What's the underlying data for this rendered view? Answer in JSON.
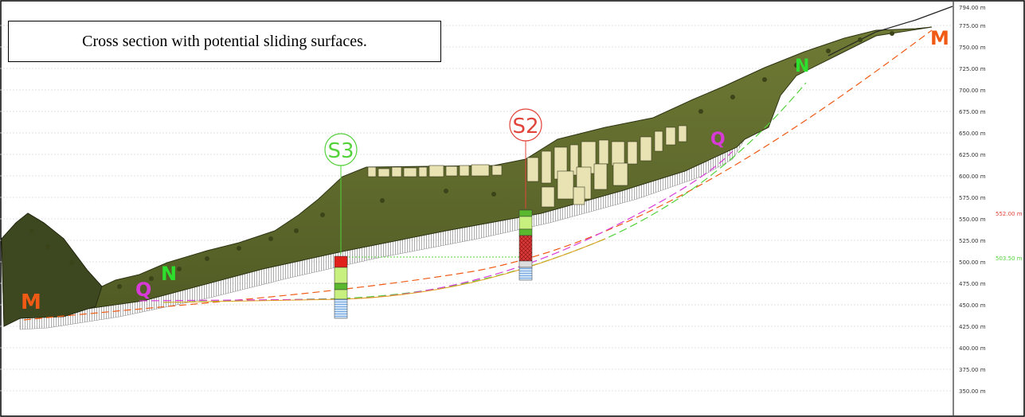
{
  "title": "Cross section with potential sliding surfaces.",
  "elevation_scale": {
    "labels": [
      "794.00 m",
      "775.00 m",
      "750.00 m",
      "725.00 m",
      "700.00 m",
      "675.00 m",
      "650.00 m",
      "625.00 m",
      "600.00 m",
      "575.00 m",
      "550.00 m",
      "525.00 m",
      "500.00 m",
      "475.00 m",
      "450.00 m",
      "425.00 m",
      "400.00 m",
      "375.00 m",
      "350.00 m"
    ]
  },
  "water_levels": [
    {
      "label": "552.00 m",
      "color": "#e0443a"
    },
    {
      "label": "503.50 m",
      "color": "#54d23c"
    }
  ],
  "boreholes": [
    {
      "label": "S2",
      "color": "#e0443a"
    },
    {
      "label": "S3",
      "color": "#54d23c"
    }
  ],
  "unit_labels": {
    "M_left": "M",
    "Q_left": "Q",
    "N_left": "N",
    "Q_right": "Q",
    "N_right": "N",
    "M_right": "M"
  },
  "unit_colors": {
    "M": "#f05a14",
    "Q": "#d83ad8",
    "N": "#2ee02e"
  },
  "surface_colors": {
    "terrain": "#5a6428",
    "hatch": "#666666"
  }
}
